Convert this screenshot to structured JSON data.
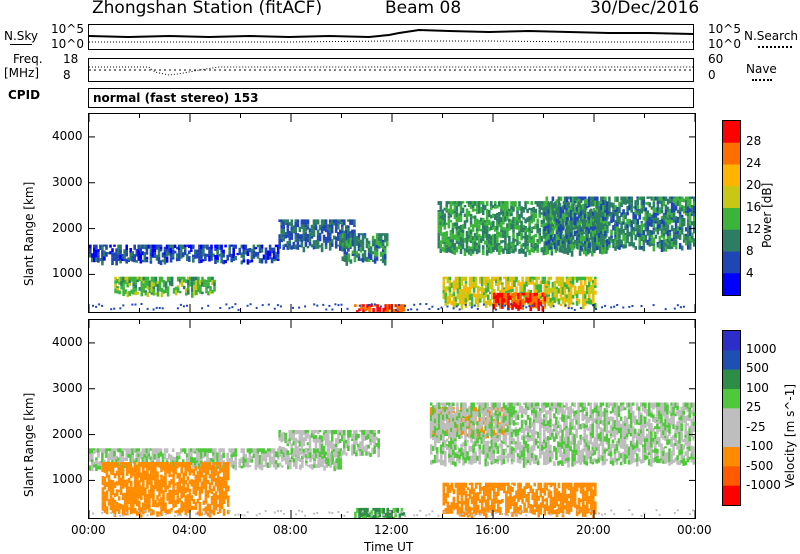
{
  "header": {
    "station_title": "Zhongshan Station (fitACF)",
    "beam": "Beam 08",
    "date": "30/Dec/2016"
  },
  "strip": {
    "nsky_label": "N.Sky",
    "nsearch_label": "N.Search",
    "noise_ticks_left": [
      "10^5",
      "10^0"
    ],
    "noise_ticks_right": [
      "10^5",
      "10^0"
    ],
    "freq_label": "Freq.",
    "freq_unit": "[MHz]",
    "freq_ticks": [
      "18",
      "8"
    ],
    "nave_label": "Nave",
    "nave_ticks": [
      "60",
      "0"
    ],
    "cpid_label": "CPID",
    "cpid_text": "normal (fast stereo) 153"
  },
  "colors": {
    "power_scale": [
      "#0000ff",
      "#1e46b4",
      "#2d7d64",
      "#3cb43c",
      "#c8c814",
      "#ffb400",
      "#ff6e00",
      "#ff0000"
    ],
    "velocity_scale": [
      "#ff0000",
      "#ff5a00",
      "#ff8c00",
      "#bebebe",
      "#bebebe",
      "#50c83c",
      "#2d8c46",
      "#1e50b4",
      "#2d2dc8"
    ]
  },
  "chart_data": [
    {
      "type": "heatmap",
      "title": "",
      "xlabel": "",
      "ylabel": "Slant Range [km]",
      "xlim": [
        "00:00",
        "24:00"
      ],
      "ylim": [
        180,
        4500
      ],
      "yticks": [
        "1000",
        "2000",
        "3000",
        "4000"
      ],
      "colorbar": {
        "label": "Power [dB]",
        "ticks": [
          "28",
          "24",
          "20",
          "16",
          "12",
          "8",
          "4"
        ],
        "range": [
          0,
          30
        ]
      },
      "echo_regions": [
        {
          "t_start": 0.0,
          "t_end": 7.5,
          "range_km": [
            1300,
            1650
          ],
          "power_db": 6
        },
        {
          "t_start": 7.5,
          "t_end": 10.5,
          "range_km": [
            1600,
            2200
          ],
          "power_db": 8
        },
        {
          "t_start": 1.0,
          "t_end": 5.0,
          "range_km": [
            600,
            950
          ],
          "power_db": 14
        },
        {
          "t_start": 10.0,
          "t_end": 11.8,
          "range_km": [
            1300,
            1900
          ],
          "power_db": 10
        },
        {
          "t_start": 10.5,
          "t_end": 12.5,
          "range_km": [
            200,
            350
          ],
          "power_db": 28
        },
        {
          "t_start": 13.8,
          "t_end": 20.5,
          "range_km": [
            1500,
            2600
          ],
          "power_db": 12
        },
        {
          "t_start": 14.0,
          "t_end": 20.0,
          "range_km": [
            350,
            950
          ],
          "power_db": 18
        },
        {
          "t_start": 16.0,
          "t_end": 18.0,
          "range_km": [
            300,
            600
          ],
          "power_db": 28
        },
        {
          "t_start": 18.0,
          "t_end": 24.0,
          "range_km": [
            1600,
            2700
          ],
          "power_db": 10
        }
      ]
    },
    {
      "type": "heatmap",
      "title": "",
      "xlabel": "Time UT",
      "ylabel": "Slant Range [km]",
      "xlim": [
        "00:00",
        "24:00"
      ],
      "xticks": [
        "00:00",
        "04:00",
        "08:00",
        "12:00",
        "16:00",
        "20:00",
        "00:00"
      ],
      "ylim": [
        180,
        4500
      ],
      "yticks": [
        "1000",
        "2000",
        "3000",
        "4000"
      ],
      "colorbar": {
        "label": "Velocity [m s^-1]",
        "ticks": [
          "1000",
          "500",
          "100",
          "25",
          "-25",
          "-100",
          "-500",
          "-1000"
        ],
        "range": [
          -1000,
          1000
        ]
      },
      "echo_regions": [
        {
          "t_start": 0.0,
          "t_end": 10.0,
          "range_km": [
            1300,
            1700
          ],
          "velocity": 0
        },
        {
          "t_start": 0.5,
          "t_end": 5.5,
          "range_km": [
            300,
            1400
          ],
          "velocity": -300
        },
        {
          "t_start": 7.5,
          "t_end": 11.5,
          "range_km": [
            1600,
            2100
          ],
          "velocity": 0
        },
        {
          "t_start": 10.5,
          "t_end": 12.5,
          "range_km": [
            200,
            400
          ],
          "velocity": 150
        },
        {
          "t_start": 13.5,
          "t_end": 16.5,
          "range_km": [
            2000,
            2600
          ],
          "velocity": -300
        },
        {
          "t_start": 13.5,
          "t_end": 24.0,
          "range_km": [
            1400,
            2700
          ],
          "velocity": 0
        },
        {
          "t_start": 14.0,
          "t_end": 20.0,
          "range_km": [
            300,
            950
          ],
          "velocity": -200
        }
      ]
    }
  ],
  "x_axis_label": "Time UT",
  "x_ticks": [
    "00:00",
    "04:00",
    "08:00",
    "12:00",
    "16:00",
    "20:00",
    "00:00"
  ]
}
